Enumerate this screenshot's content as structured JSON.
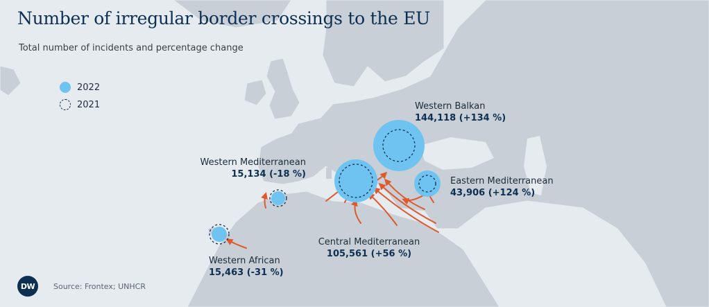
{
  "title": "Number of irregular border crossings to the EU",
  "subtitle": "Total number of incidents and percentage change",
  "legend": [
    {
      "label": "2022",
      "style": "filled"
    },
    {
      "label": "2021",
      "style": "dashed"
    }
  ],
  "regions": {
    "western_balkan": {
      "name": "Western Balkan",
      "value_text": "144,118 (+134 %)",
      "value_2022": 144118,
      "change_pct": 134
    },
    "eastern_mediterranean": {
      "name": "Eastern Mediterranean",
      "value_text": "43,906 (+124 %)",
      "value_2022": 43906,
      "change_pct": 124
    },
    "western_mediterranean": {
      "name": "Western Mediterranean",
      "value_text": "15,134 (-18 %)",
      "value_2022": 15134,
      "change_pct": -18
    },
    "central_mediterranean": {
      "name": "Central Mediterranean",
      "value_text": "105,561 (+56 %)",
      "value_2022": 105561,
      "change_pct": 56
    },
    "western_african": {
      "name": "Western African",
      "value_text": "15,463 (-31 %)",
      "value_2022": 15463,
      "change_pct": -31
    }
  },
  "source": "Source: Frontex; UNHCR",
  "logo_text": "DW",
  "colors": {
    "sea": "#e6ebf0",
    "land": "#c8cfd6",
    "bubble_2022": "#6fc3f1",
    "bubble_2021_stroke": "#0d2f52",
    "arrow": "#e0592a",
    "title": "#0d2f52"
  }
}
